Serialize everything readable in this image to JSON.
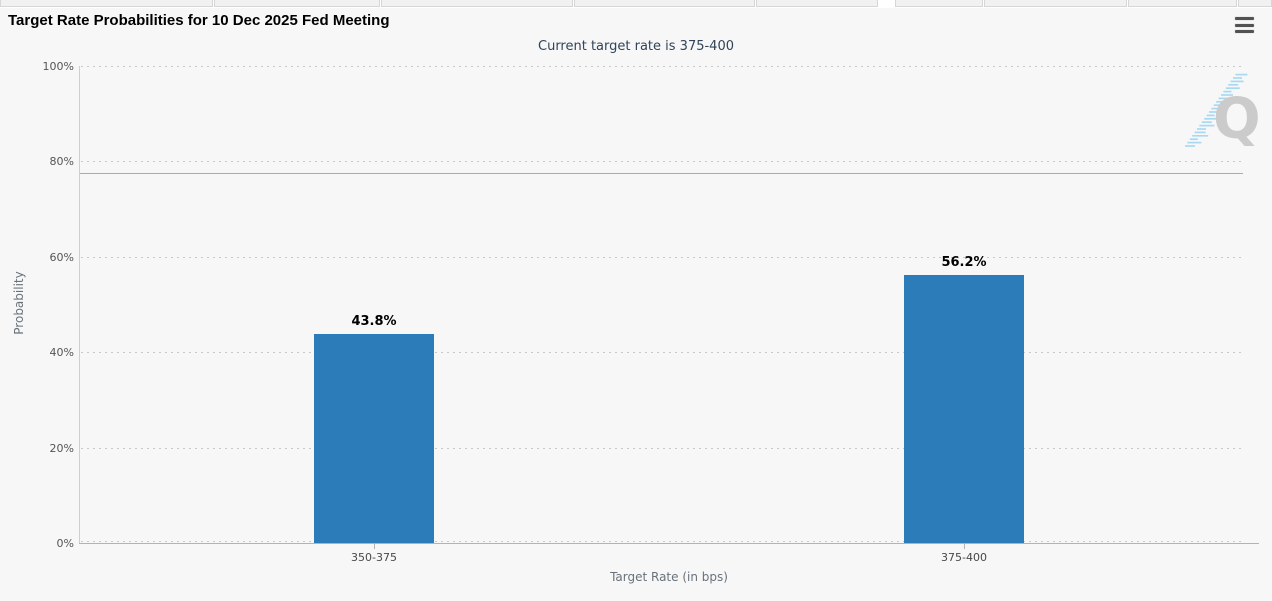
{
  "chart_data": {
    "type": "bar",
    "title": "Target Rate Probabilities for 10 Dec 2025 Fed Meeting",
    "subtitle": "Current target rate is 375-400",
    "categories": [
      "350-375",
      "375-400"
    ],
    "values": [
      43.8,
      56.2
    ],
    "data_labels": [
      "43.8%",
      "56.2%"
    ],
    "xlabel": "Target Rate (in bps)",
    "ylabel": "Probability",
    "ylim": [
      0,
      100
    ],
    "ytick_interval": 20,
    "ytick_labels": [
      "0%",
      "20%",
      "40%",
      "60%",
      "80%",
      "100%"
    ],
    "reference_line_value": 77.5,
    "grid": "dotted-horizontal",
    "legend": "none",
    "watermark": "Q",
    "colors": {
      "bar": "#2b7cb8",
      "background": "#f7f7f7",
      "title": "#000000",
      "subtitle": "#314459",
      "tick_text": "#555555",
      "axis_title_text": "#69727b",
      "data_label": "#000000",
      "gridline": "#c9c9c9",
      "reference_line": "#ababab",
      "axis_line": "#b3b3b3",
      "watermark_letter": "#cbcbcb",
      "watermark_stripes": "#a9d8f3"
    },
    "icons": [
      "hamburger-menu-icon"
    ]
  }
}
